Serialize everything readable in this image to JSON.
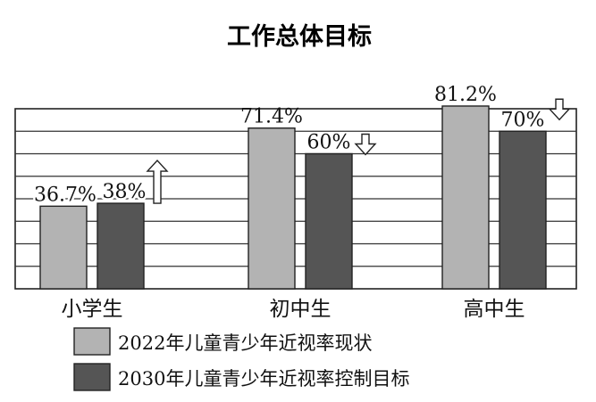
{
  "chart_data": {
    "type": "bar",
    "title": "工作总体目标",
    "categories": [
      "小学生",
      "初中生",
      "高中生"
    ],
    "series": [
      {
        "name": "2022年儿童青少年近视率现状",
        "values": [
          36.7,
          71.4,
          81.2
        ],
        "labels": [
          "36.7%",
          "71.4%",
          "81.2%"
        ],
        "color": "#b3b3b3"
      },
      {
        "name": "2030年儿童青少年近视率控制目标",
        "values": [
          38,
          60,
          70
        ],
        "labels": [
          "38%",
          "60%",
          "70%"
        ],
        "color": "#555555"
      }
    ],
    "arrows": [
      "up",
      "down",
      "down"
    ],
    "ylim": [
      0,
      80
    ],
    "grid": true,
    "legend_position": "bottom"
  }
}
